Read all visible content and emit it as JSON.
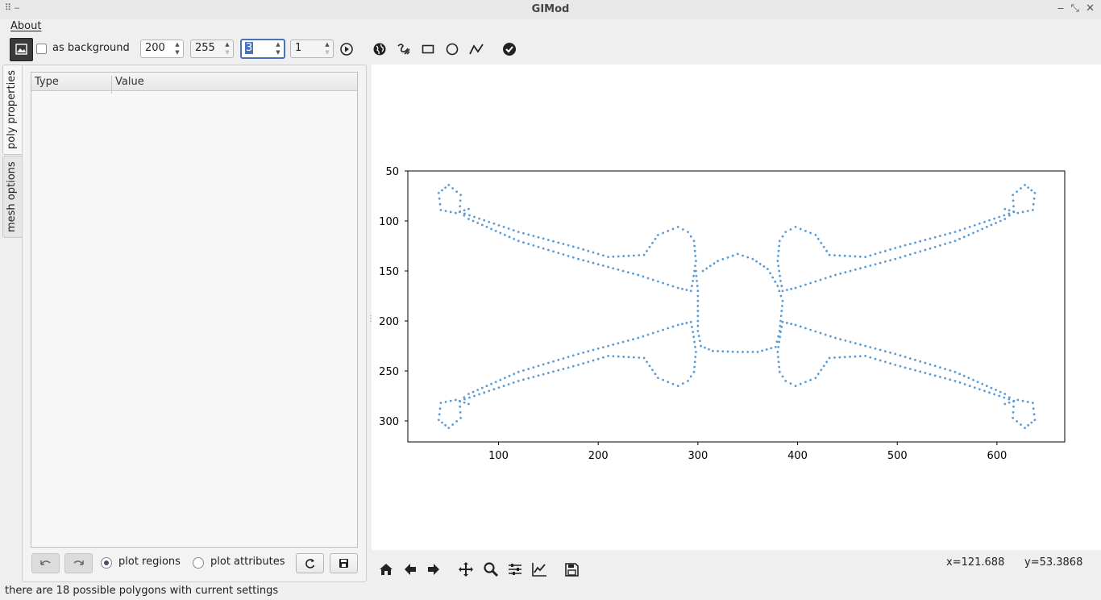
{
  "window": {
    "title": "GIMod"
  },
  "menu": {
    "about": "About"
  },
  "toolbar": {
    "as_background_label": "as background",
    "as_background_checked": false,
    "spin1": "200",
    "spin2": "255",
    "spin3": "3",
    "spin4": "1",
    "icons": [
      "image-icon",
      "play-icon",
      "globe-icon",
      "freehand-icon",
      "rectangle-icon",
      "circle-icon",
      "polyline-icon",
      "check-circle-icon"
    ]
  },
  "left_tabs": [
    "poly properties",
    "mesh options"
  ],
  "table": {
    "columns": [
      "Type",
      "Value"
    ],
    "rows": []
  },
  "panel_bottom": {
    "radio_regions": "plot regions",
    "radio_attributes": "plot attributes",
    "selected": "plot regions"
  },
  "navbar": {
    "icons": [
      "home-icon",
      "back-icon",
      "forward-icon",
      "pan-icon",
      "zoom-icon",
      "configure-subplots-icon",
      "edit-axis-icon",
      "save-figure-icon"
    ],
    "coord_x": "x=121.688",
    "coord_y": "y=53.3868"
  },
  "status": "there are 18 possible polygons with current settings",
  "chart_data": {
    "type": "scatter",
    "title": "",
    "xlabel": "",
    "ylabel": "",
    "xlim": [
      9,
      668
    ],
    "ylim": [
      321,
      50
    ],
    "y_inverted": true,
    "xticks": [
      "100",
      "200",
      "300",
      "400",
      "500",
      "600"
    ],
    "yticks": [
      "50",
      "100",
      "150",
      "200",
      "250",
      "300"
    ],
    "marker_color": "#5b9bd5",
    "series": [
      {
        "outline": [
          [
            70,
            88
          ],
          [
            57,
            92
          ],
          [
            42,
            89
          ],
          [
            40,
            72
          ],
          [
            50,
            64
          ],
          [
            62,
            74
          ],
          [
            61,
            91
          ],
          [
            120,
            111
          ],
          [
            180,
            127
          ],
          [
            210,
            136
          ],
          [
            246,
            134
          ],
          [
            260,
            114
          ],
          [
            280,
            106
          ],
          [
            290,
            111
          ],
          [
            296,
            120
          ],
          [
            298,
            140
          ],
          [
            295,
            160
          ],
          [
            293,
            170
          ],
          [
            280,
            167
          ],
          [
            240,
            154
          ],
          [
            180,
            138
          ],
          [
            120,
            120
          ],
          [
            70,
            98
          ],
          [
            61,
            91
          ]
        ],
        "center": [
          [
            298,
            150
          ],
          [
            300,
            170
          ],
          [
            300,
            210
          ],
          [
            303,
            225
          ],
          [
            315,
            230
          ],
          [
            340,
            231
          ],
          [
            360,
            231
          ],
          [
            378,
            226
          ],
          [
            382,
            210
          ],
          [
            385,
            180
          ],
          [
            380,
            165
          ],
          [
            370,
            148
          ],
          [
            355,
            138
          ],
          [
            340,
            133
          ],
          [
            320,
            140
          ],
          [
            305,
            150
          ]
        ]
      }
    ]
  }
}
